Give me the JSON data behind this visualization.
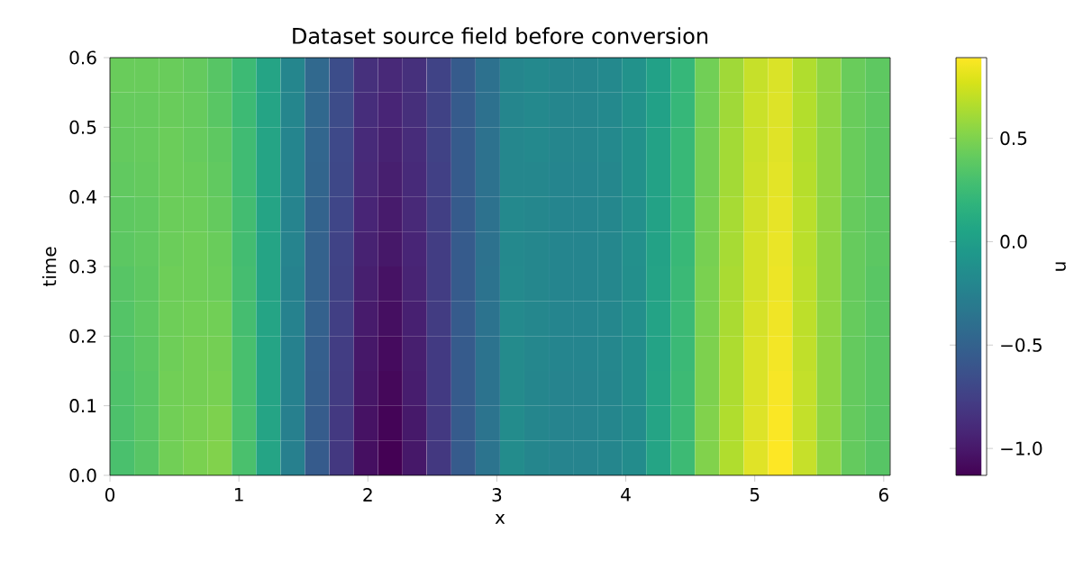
{
  "chart_data": {
    "type": "heatmap",
    "title": "Dataset source field before conversion",
    "xlabel": "x",
    "ylabel": "time",
    "clabel": "u",
    "x": [
      0.095,
      0.284,
      0.473,
      0.662,
      0.851,
      1.04,
      1.229,
      1.418,
      1.607,
      1.796,
      1.985,
      2.174,
      2.363,
      2.552,
      2.741,
      2.93,
      3.119,
      3.308,
      3.497,
      3.686,
      3.875,
      4.064,
      4.253,
      4.442,
      4.631,
      4.82,
      5.009,
      5.198,
      5.387,
      5.576,
      5.765,
      5.954
    ],
    "y": [
      0.575,
      0.525,
      0.475,
      0.425,
      0.375,
      0.325,
      0.275,
      0.225,
      0.175,
      0.125,
      0.075,
      0.025
    ],
    "cells": [
      [
        0.42,
        0.42,
        0.42,
        0.4,
        0.35,
        0.25,
        0.05,
        -0.2,
        -0.45,
        -0.65,
        -0.85,
        -0.9,
        -0.85,
        -0.72,
        -0.55,
        -0.38,
        -0.2,
        -0.18,
        -0.2,
        -0.2,
        -0.18,
        -0.1,
        0.02,
        0.22,
        0.45,
        0.6,
        0.72,
        0.78,
        0.65,
        0.55,
        0.42,
        0.38
      ],
      [
        0.41,
        0.41,
        0.42,
        0.41,
        0.36,
        0.25,
        0.05,
        -0.2,
        -0.46,
        -0.66,
        -0.87,
        -0.92,
        -0.86,
        -0.73,
        -0.55,
        -0.38,
        -0.2,
        -0.18,
        -0.2,
        -0.2,
        -0.18,
        -0.1,
        0.02,
        0.22,
        0.45,
        0.6,
        0.73,
        0.79,
        0.66,
        0.55,
        0.42,
        0.38
      ],
      [
        0.4,
        0.41,
        0.43,
        0.41,
        0.38,
        0.26,
        0.05,
        -0.21,
        -0.47,
        -0.68,
        -0.89,
        -0.94,
        -0.88,
        -0.73,
        -0.55,
        -0.37,
        -0.19,
        -0.18,
        -0.2,
        -0.2,
        -0.18,
        -0.11,
        0.03,
        0.23,
        0.46,
        0.61,
        0.73,
        0.8,
        0.66,
        0.55,
        0.42,
        0.37
      ],
      [
        0.39,
        0.4,
        0.43,
        0.42,
        0.39,
        0.26,
        0.05,
        -0.21,
        -0.48,
        -0.69,
        -0.9,
        -0.96,
        -0.89,
        -0.74,
        -0.55,
        -0.37,
        -0.19,
        -0.19,
        -0.21,
        -0.21,
        -0.19,
        -0.11,
        0.03,
        0.23,
        0.46,
        0.61,
        0.74,
        0.81,
        0.67,
        0.55,
        0.42,
        0.37
      ],
      [
        0.38,
        0.39,
        0.43,
        0.43,
        0.4,
        0.27,
        0.05,
        -0.22,
        -0.49,
        -0.7,
        -0.92,
        -0.98,
        -0.9,
        -0.75,
        -0.55,
        -0.37,
        -0.18,
        -0.19,
        -0.21,
        -0.21,
        -0.19,
        -0.12,
        0.03,
        0.23,
        0.47,
        0.62,
        0.75,
        0.82,
        0.68,
        0.55,
        0.41,
        0.37
      ],
      [
        0.37,
        0.39,
        0.43,
        0.44,
        0.42,
        0.27,
        0.05,
        -0.22,
        -0.5,
        -0.72,
        -0.94,
        -1.0,
        -0.92,
        -0.76,
        -0.55,
        -0.37,
        -0.18,
        -0.19,
        -0.21,
        -0.21,
        -0.19,
        -0.12,
        0.03,
        0.23,
        0.47,
        0.62,
        0.76,
        0.83,
        0.68,
        0.55,
        0.41,
        0.37
      ],
      [
        0.35,
        0.38,
        0.44,
        0.44,
        0.43,
        0.28,
        0.05,
        -0.23,
        -0.5,
        -0.73,
        -0.96,
        -1.03,
        -0.93,
        -0.76,
        -0.55,
        -0.36,
        -0.17,
        -0.19,
        -0.21,
        -0.21,
        -0.19,
        -0.13,
        0.04,
        0.24,
        0.48,
        0.63,
        0.76,
        0.84,
        0.69,
        0.55,
        0.41,
        0.36
      ],
      [
        0.34,
        0.38,
        0.44,
        0.45,
        0.45,
        0.28,
        0.05,
        -0.23,
        -0.51,
        -0.75,
        -0.98,
        -1.05,
        -0.95,
        -0.77,
        -0.55,
        -0.36,
        -0.17,
        -0.19,
        -0.21,
        -0.21,
        -0.19,
        -0.13,
        0.04,
        0.24,
        0.48,
        0.63,
        0.77,
        0.85,
        0.69,
        0.55,
        0.41,
        0.36
      ],
      [
        0.33,
        0.37,
        0.44,
        0.46,
        0.46,
        0.29,
        0.05,
        -0.24,
        -0.52,
        -0.76,
        -1.0,
        -1.07,
        -0.96,
        -0.78,
        -0.55,
        -0.36,
        -0.16,
        -0.19,
        -0.21,
        -0.21,
        -0.19,
        -0.14,
        0.04,
        0.24,
        0.49,
        0.64,
        0.78,
        0.86,
        0.7,
        0.55,
        0.4,
        0.36
      ],
      [
        0.32,
        0.36,
        0.45,
        0.46,
        0.47,
        0.29,
        0.05,
        -0.24,
        -0.53,
        -0.77,
        -1.01,
        -1.09,
        -0.97,
        -0.78,
        -0.55,
        -0.36,
        -0.16,
        -0.2,
        -0.22,
        -0.22,
        -0.2,
        -0.14,
        0.05,
        0.25,
        0.49,
        0.64,
        0.78,
        0.87,
        0.71,
        0.55,
        0.4,
        0.36
      ],
      [
        0.31,
        0.36,
        0.45,
        0.47,
        0.49,
        0.3,
        0.05,
        -0.25,
        -0.54,
        -0.79,
        -1.03,
        -1.11,
        -0.99,
        -0.79,
        -0.55,
        -0.35,
        -0.15,
        -0.2,
        -0.22,
        -0.22,
        -0.2,
        -0.15,
        0.05,
        0.25,
        0.5,
        0.65,
        0.79,
        0.88,
        0.71,
        0.55,
        0.4,
        0.35
      ],
      [
        0.3,
        0.35,
        0.45,
        0.48,
        0.5,
        0.3,
        0.05,
        -0.25,
        -0.55,
        -0.8,
        -1.05,
        -1.13,
        -1.0,
        -0.8,
        -0.55,
        -0.35,
        -0.15,
        -0.2,
        -0.22,
        -0.22,
        -0.2,
        -0.15,
        0.05,
        0.25,
        0.5,
        0.65,
        0.8,
        0.89,
        0.72,
        0.55,
        0.4,
        0.35
      ]
    ],
    "xlim": [
      0,
      6.05
    ],
    "ylim": [
      0,
      0.6
    ],
    "xticks": [
      0,
      1,
      2,
      3,
      4,
      5,
      6
    ],
    "yticks": [
      {
        "value": 0,
        "label": "0.0"
      },
      {
        "value": 0.1,
        "label": "0.1"
      },
      {
        "value": 0.2,
        "label": "0.2"
      },
      {
        "value": 0.3,
        "label": "0.3"
      },
      {
        "value": 0.4,
        "label": "0.4"
      },
      {
        "value": 0.5,
        "label": "0.5"
      },
      {
        "value": 0.6,
        "label": "0.6"
      }
    ],
    "clim": [
      -1.13,
      0.89
    ],
    "cticks": [
      {
        "value": 0.5,
        "label": "0.5"
      },
      {
        "value": 0,
        "label": "0.0"
      },
      {
        "value": -0.5,
        "label": "−0.5"
      },
      {
        "value": -1.0,
        "label": "−1.0"
      }
    ]
  }
}
